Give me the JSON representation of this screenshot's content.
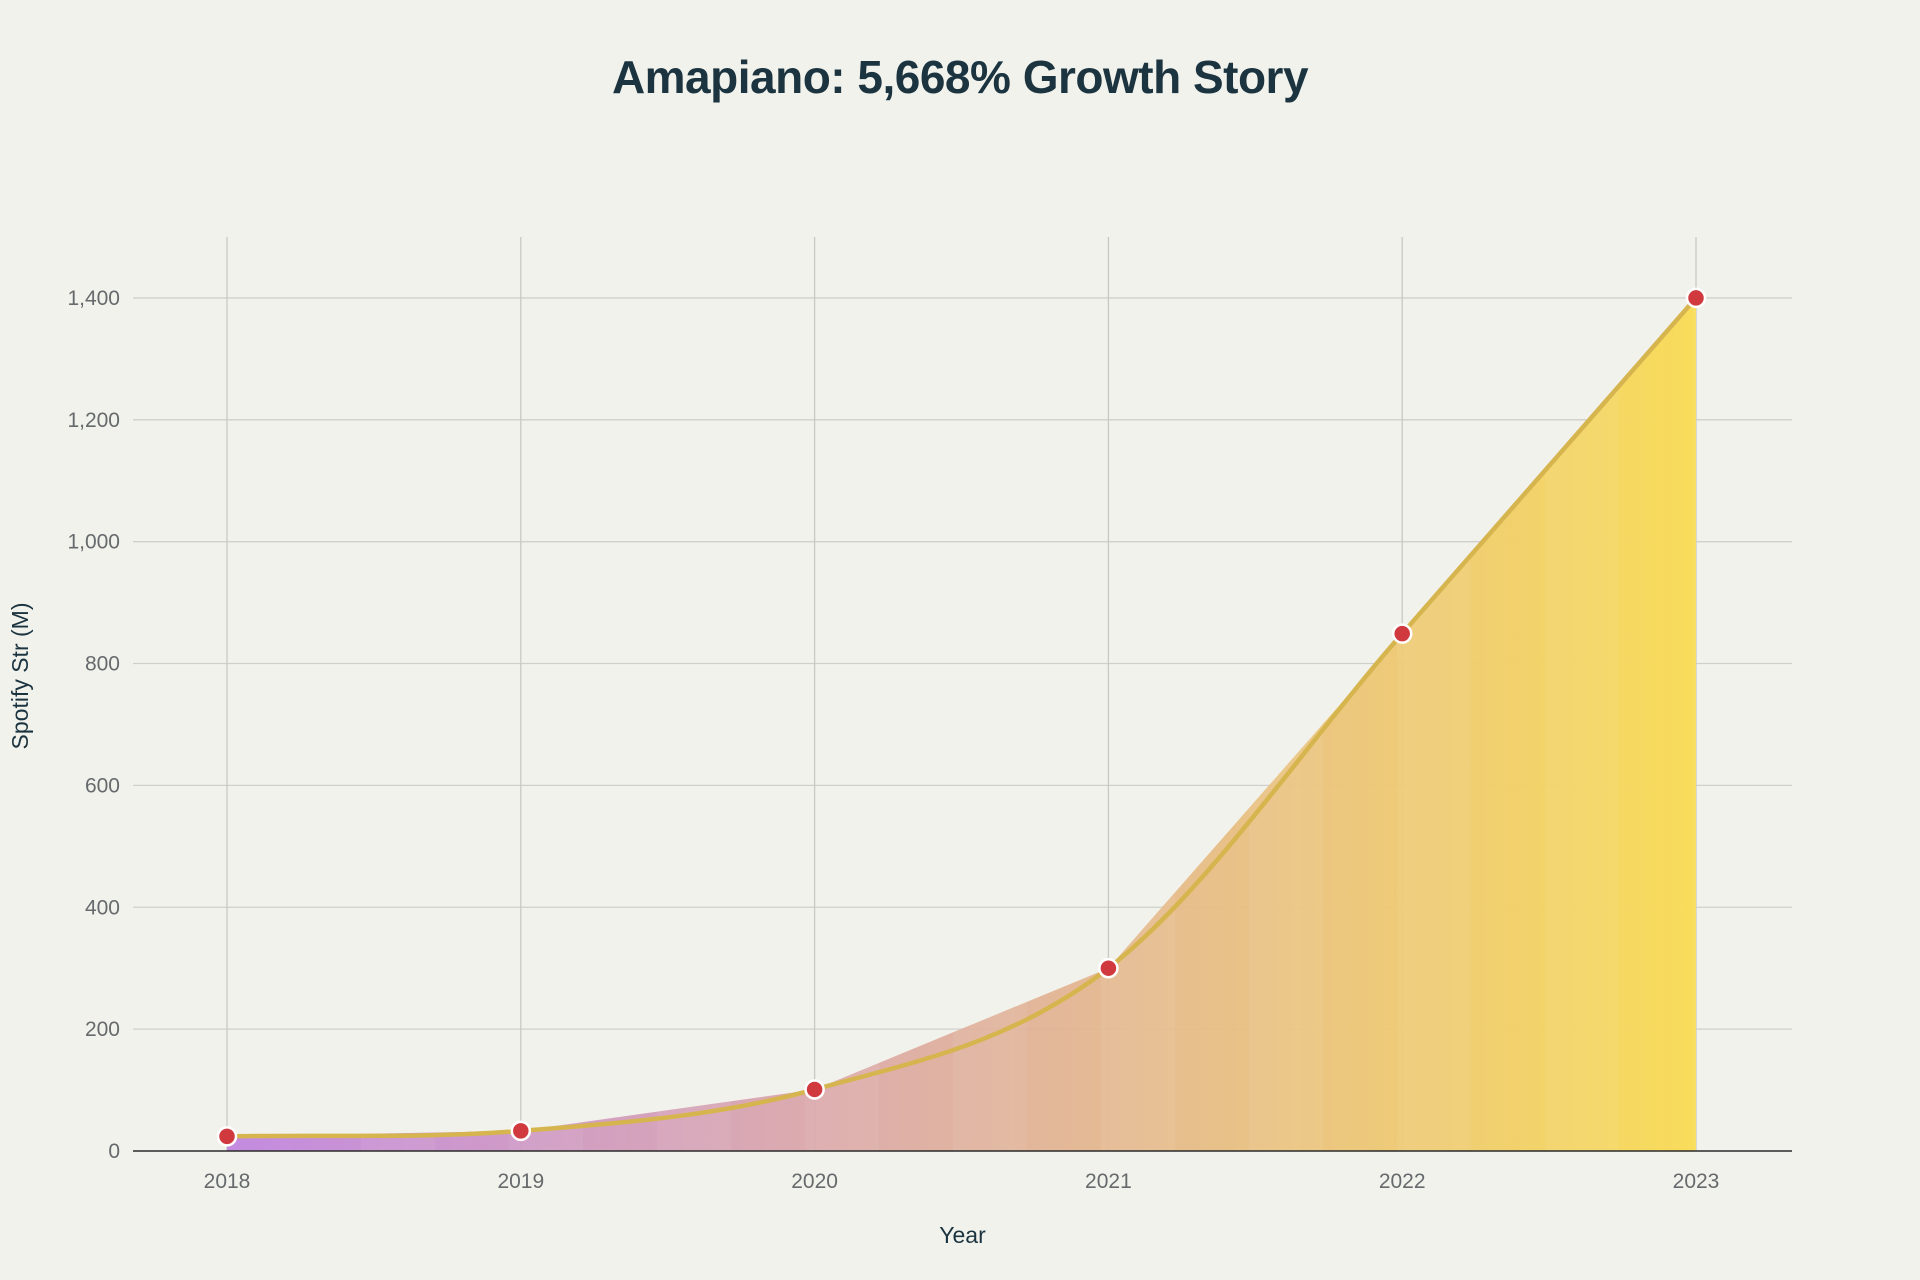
{
  "chart_data": {
    "type": "area",
    "title": "Amapiano: 5,668% Growth Story",
    "xlabel": "Year",
    "ylabel": "Spotify Str (M)",
    "x": [
      "2018",
      "2019",
      "2020",
      "2021",
      "2022",
      "2023"
    ],
    "series": [
      {
        "values": [
          24,
          33,
          101,
          300,
          849,
          1400
        ]
      }
    ],
    "ylim": [
      0,
      1500
    ],
    "yticks": [
      0,
      200,
      400,
      600,
      800,
      1000,
      1200,
      1400
    ],
    "ytick_labels": [
      "0",
      "200",
      "400",
      "600",
      "800",
      "1,000",
      "1,200",
      "1,400"
    ],
    "grid": true,
    "legend": "none",
    "colors": {
      "fill_start": "#c185e0",
      "fill_end": "#f8dc5a",
      "line": "#d6b54e",
      "marker": "#d0393e",
      "marker_outline": "#ffffff",
      "grid": "#cfd0cb",
      "axis": "#2b2b2b",
      "background": "#f2f2ec"
    }
  }
}
